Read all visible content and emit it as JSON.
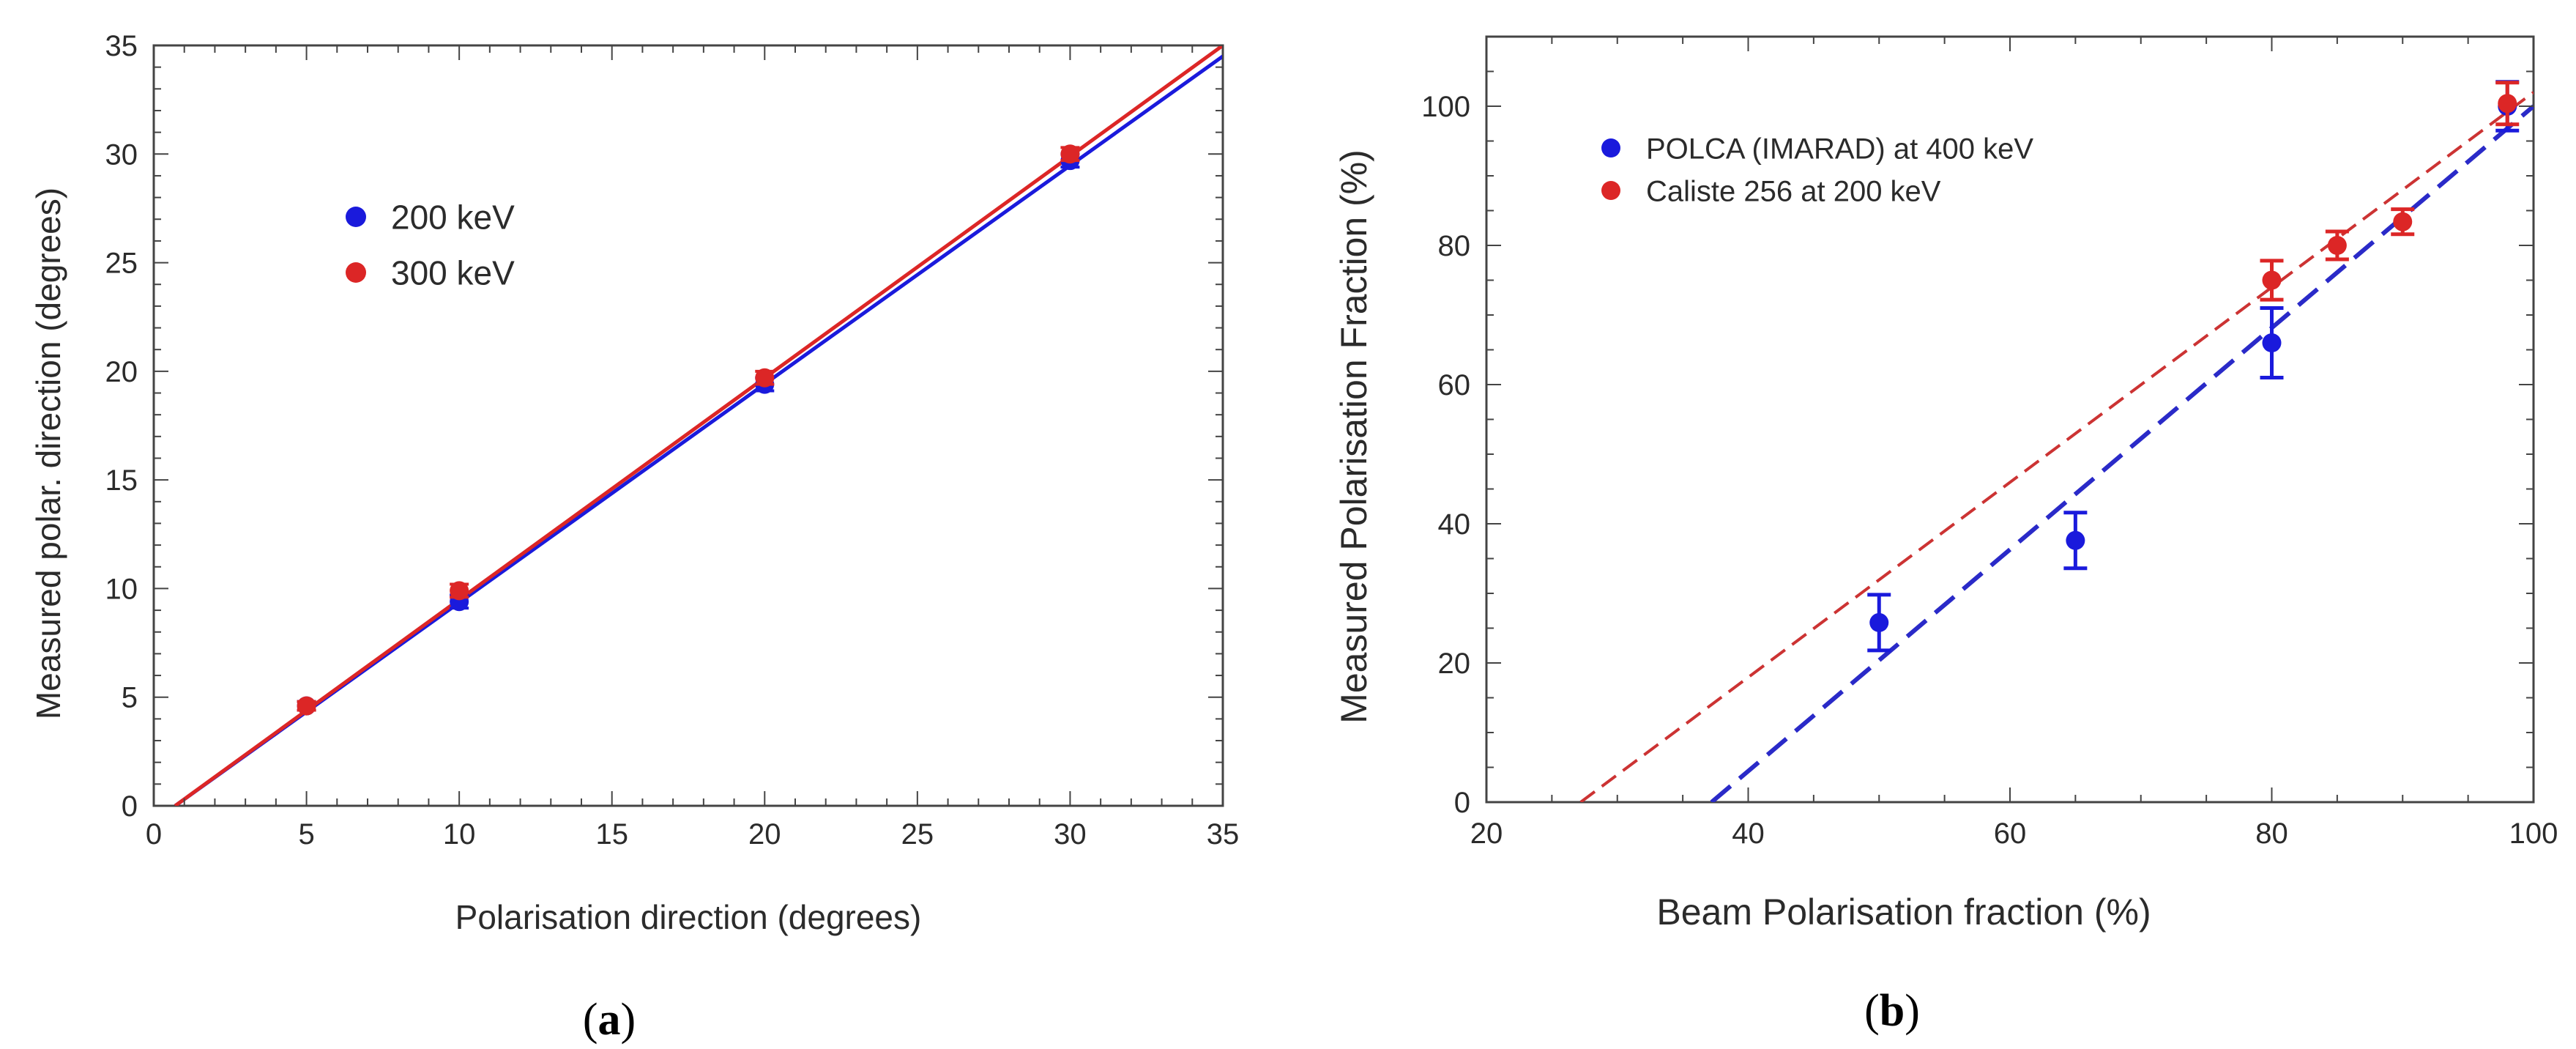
{
  "colors": {
    "blue": "#1a1adc",
    "red": "#dc2626",
    "blue_dash": "#2a2ac8",
    "red_dash": "#cc3333",
    "axis": "#444444",
    "text": "#2b2b2b"
  },
  "chart_data": [
    {
      "type": "scatter",
      "panel_label": "(a)",
      "panel_letter": "a",
      "title": "",
      "xlabel": "Polarisation direction (degrees)",
      "ylabel": "Measured polar. direction (degrees)",
      "xlim": [
        0,
        35
      ],
      "ylim": [
        0,
        35
      ],
      "xticks": [
        0,
        5,
        10,
        15,
        20,
        25,
        30,
        35
      ],
      "yticks": [
        0,
        5,
        10,
        15,
        20,
        25,
        30,
        35
      ],
      "x_minor_step": 1,
      "y_minor_step": 1,
      "legend_position": "upper-left-center",
      "series": [
        {
          "name": "200 keV",
          "color_key": "blue",
          "x": [
            5,
            10,
            20,
            30
          ],
          "y": [
            4.6,
            9.4,
            19.4,
            29.7
          ],
          "err": [
            0.2,
            0.3,
            0.3,
            0.3
          ],
          "fit": {
            "x": [
              0.7,
              35
            ],
            "y": [
              0,
              34.5
            ],
            "style": "solid"
          }
        },
        {
          "name": "300 keV",
          "color_key": "red",
          "x": [
            5,
            10,
            20,
            30
          ],
          "y": [
            4.6,
            9.9,
            19.7,
            30.0
          ],
          "err": [
            0.2,
            0.3,
            0.3,
            0.3
          ],
          "fit": {
            "x": [
              0.7,
              35
            ],
            "y": [
              0,
              35
            ],
            "style": "solid"
          }
        }
      ]
    },
    {
      "type": "scatter",
      "panel_label": "(b)",
      "panel_letter": "b",
      "title": "",
      "xlabel": "Beam Polarisation fraction (%)",
      "ylabel": "Measured Polarisation Fraction (%)",
      "xlim": [
        20,
        100
      ],
      "ylim": [
        0,
        110
      ],
      "xticks": [
        20,
        40,
        60,
        80,
        100
      ],
      "yticks": [
        0,
        20,
        40,
        60,
        80,
        100
      ],
      "x_minor_step": 5,
      "y_minor_step": 5,
      "legend_position": "upper-left",
      "series": [
        {
          "name": "POLCA (IMARAD) at 400 keV",
          "color_key": "blue",
          "x": [
            50,
            65,
            80,
            98
          ],
          "y": [
            25.8,
            37.6,
            66,
            100
          ],
          "err": [
            4,
            4,
            5,
            3.5
          ],
          "fit": {
            "x": [
              37.2,
              100
            ],
            "y": [
              0,
              100
            ],
            "style": "dashed"
          }
        },
        {
          "name": "Caliste 256 at 200 keV",
          "color_key": "red",
          "x": [
            80,
            85,
            90,
            98
          ],
          "y": [
            75,
            80,
            83.4,
            100.4
          ],
          "err": [
            2.8,
            2,
            1.8,
            3
          ],
          "fit": {
            "x": [
              27.2,
              100
            ],
            "y": [
              0,
              102
            ],
            "style": "dashed"
          }
        }
      ]
    }
  ]
}
